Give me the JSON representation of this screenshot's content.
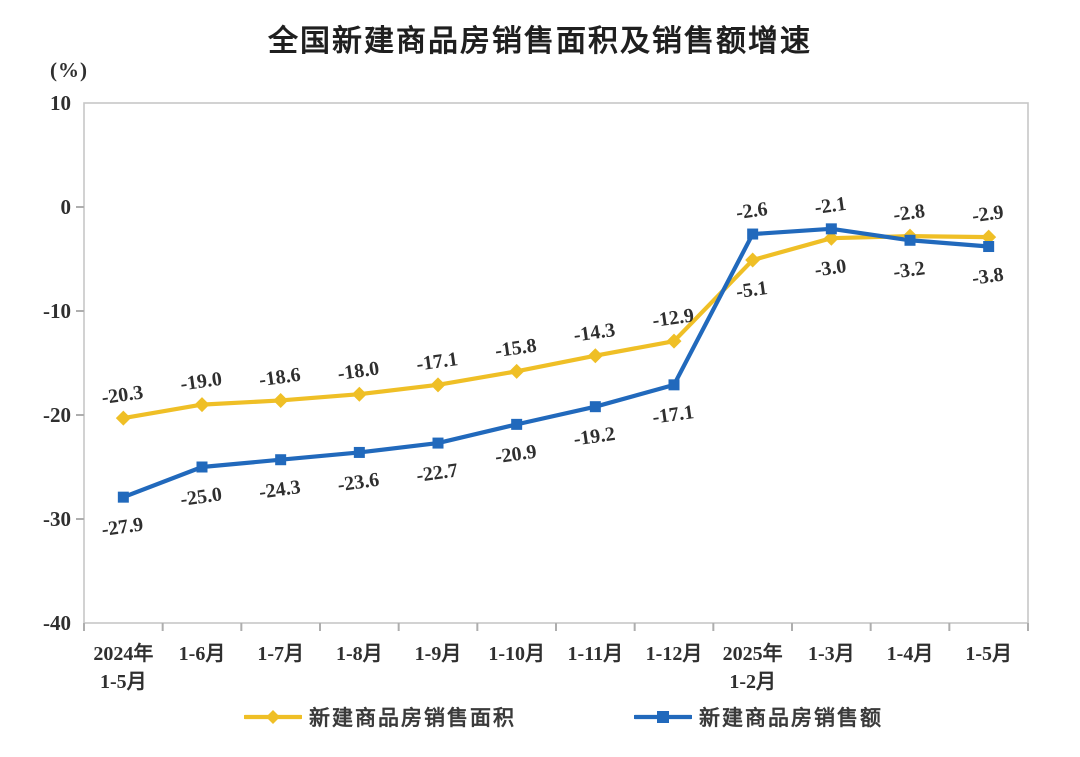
{
  "title": "全国新建商品房销售面积及销售额增速",
  "unit_label": "(%)",
  "chart_data": {
    "type": "line",
    "categories": [
      [
        "2024年",
        "1-5月"
      ],
      [
        "1-6月"
      ],
      [
        "1-7月"
      ],
      [
        "1-8月"
      ],
      [
        "1-9月"
      ],
      [
        "1-10月"
      ],
      [
        "1-11月"
      ],
      [
        "1-12月"
      ],
      [
        "2025年",
        "1-2月"
      ],
      [
        "1-3月"
      ],
      [
        "1-4月"
      ],
      [
        "1-5月"
      ]
    ],
    "series": [
      {
        "name": "新建商品房销售面积",
        "color": "#EFBF26",
        "marker": "diamond",
        "values": [
          -20.3,
          -19.0,
          -18.6,
          -18.0,
          -17.1,
          -15.8,
          -14.3,
          -12.9,
          -5.1,
          -3.0,
          -2.8,
          -2.9
        ],
        "labels": [
          "-20.3",
          "-19.0",
          "-18.6",
          "-18.0",
          "-17.1",
          "-15.8",
          "-14.3",
          "-12.9",
          "-5.1",
          "-3.0",
          "-2.8",
          "-2.9"
        ]
      },
      {
        "name": "新建商品房销售额",
        "color": "#2169BC",
        "marker": "square",
        "values": [
          -27.9,
          -25.0,
          -24.3,
          -23.6,
          -22.7,
          -20.9,
          -19.2,
          -17.1,
          -2.6,
          -2.1,
          -3.2,
          -3.8
        ],
        "labels": [
          "-27.9",
          "-25.0",
          "-24.3",
          "-23.6",
          "-22.7",
          "-20.9",
          "-19.2",
          "-17.1",
          "-2.6",
          "-2.1",
          "-3.2",
          "-3.8"
        ]
      }
    ],
    "ylabel": "(%)",
    "ylim": [
      -40,
      10
    ],
    "yticks": [
      10,
      0,
      -10,
      -20,
      -30,
      -40
    ],
    "grid": false,
    "legend_position": "bottom",
    "axis_color": "#c7c7c7",
    "tick_color": "#aeaeae",
    "label_color": "#2f2f2f"
  }
}
